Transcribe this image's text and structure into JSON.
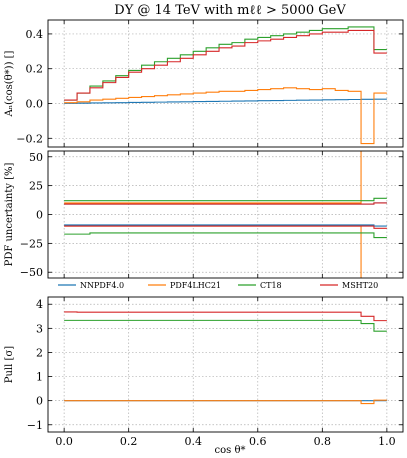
{
  "figure": {
    "title": "DY @ 14 TeV with mℓℓ > 5000 GeV",
    "xlabel": "cos θ*"
  },
  "colors": {
    "NNPDF4.0": "#1f77b4",
    "PDF4LHC21": "#ff7f0e",
    "CT18": "#2ca02c",
    "MSHT20": "#d62728"
  },
  "chart_data": [
    {
      "type": "line",
      "step": true,
      "panel": "asymmetry",
      "ylabel": "Aₙ(cos(θ*)) []",
      "xlim": [
        -0.05,
        1.05
      ],
      "ylim": [
        -0.25,
        0.48
      ],
      "x_ticks": [
        0.0,
        0.2,
        0.4,
        0.6,
        0.8,
        1.0
      ],
      "y_ticks": [
        -0.2,
        0.0,
        0.2,
        0.4
      ],
      "y_tick_labels": [
        "−0.2",
        "0.0",
        "0.2",
        "0.4"
      ],
      "grid": true,
      "bin_edges": [
        0.0,
        0.04,
        0.08,
        0.12,
        0.16,
        0.2,
        0.24,
        0.28,
        0.32,
        0.36,
        0.4,
        0.44,
        0.48,
        0.52,
        0.56,
        0.6,
        0.64,
        0.68,
        0.72,
        0.76,
        0.8,
        0.84,
        0.88,
        0.92,
        0.96,
        1.0
      ],
      "series": [
        {
          "name": "NNPDF4.0",
          "values": [
            0.001,
            0.002,
            0.003,
            0.004,
            0.005,
            0.006,
            0.007,
            0.008,
            0.009,
            0.01,
            0.011,
            0.012,
            0.013,
            0.014,
            0.015,
            0.016,
            0.017,
            0.018,
            0.019,
            0.02,
            0.021,
            0.022,
            0.023,
            0.024,
            0.025
          ]
        },
        {
          "name": "PDF4LHC21",
          "values": [
            0.005,
            0.01,
            0.02,
            0.025,
            0.03,
            0.035,
            0.04,
            0.045,
            0.05,
            0.055,
            0.06,
            0.065,
            0.07,
            0.07,
            0.075,
            0.08,
            0.085,
            0.09,
            0.085,
            0.08,
            0.085,
            0.075,
            0.07,
            -0.23,
            0.06
          ]
        },
        {
          "name": "CT18",
          "values": [
            0.02,
            0.06,
            0.1,
            0.13,
            0.16,
            0.19,
            0.22,
            0.24,
            0.26,
            0.28,
            0.3,
            0.32,
            0.34,
            0.35,
            0.37,
            0.38,
            0.39,
            0.4,
            0.41,
            0.42,
            0.43,
            0.43,
            0.44,
            0.44,
            0.31
          ]
        },
        {
          "name": "MSHT20",
          "values": [
            0.02,
            0.06,
            0.09,
            0.12,
            0.15,
            0.18,
            0.2,
            0.22,
            0.24,
            0.26,
            0.28,
            0.3,
            0.32,
            0.33,
            0.35,
            0.36,
            0.37,
            0.38,
            0.39,
            0.4,
            0.41,
            0.41,
            0.42,
            0.42,
            0.29
          ]
        }
      ]
    },
    {
      "type": "line",
      "step": true,
      "panel": "pdf-uncertainty",
      "ylabel": "PDF uncertainty [%]",
      "xlim": [
        -0.05,
        1.05
      ],
      "ylim": [
        -55,
        55
      ],
      "x_ticks": [
        0.0,
        0.2,
        0.4,
        0.6,
        0.8,
        1.0
      ],
      "y_ticks": [
        -50,
        -25,
        0,
        25,
        50
      ],
      "y_tick_labels": [
        "−50",
        "−25",
        "0",
        "25",
        "50"
      ],
      "grid": true,
      "legend": "bottom, outside, 4 columns",
      "bin_edges": [
        0.0,
        0.04,
        0.08,
        0.12,
        0.16,
        0.2,
        0.24,
        0.28,
        0.32,
        0.36,
        0.4,
        0.44,
        0.48,
        0.52,
        0.56,
        0.6,
        0.64,
        0.68,
        0.72,
        0.76,
        0.8,
        0.84,
        0.88,
        0.92,
        0.96,
        1.0
      ],
      "series": [
        {
          "name": "NNPDF4.0",
          "upper": [
            9,
            9,
            9,
            9,
            9,
            9,
            9,
            9,
            9,
            9,
            9,
            9,
            9,
            9,
            9,
            9,
            9,
            9,
            9,
            9,
            9,
            9,
            9,
            9,
            10
          ],
          "lower": [
            -9,
            -9,
            -9,
            -9,
            -9,
            -9,
            -9,
            -9,
            -9,
            -9,
            -9,
            -9,
            -9,
            -9,
            -9,
            -9,
            -9,
            -9,
            -9,
            -9,
            -9,
            -9,
            -9,
            -9,
            -10
          ]
        },
        {
          "name": "PDF4LHC21",
          "upper": [
            10,
            10,
            10,
            10,
            10,
            10,
            10,
            10,
            10,
            10,
            10,
            10,
            10,
            10,
            10,
            10,
            10,
            10,
            10,
            10,
            10,
            10,
            10,
            60,
            60
          ],
          "lower": [
            -10,
            -10,
            -10,
            -10,
            -10,
            -10,
            -10,
            -10,
            -10,
            -10,
            -10,
            -10,
            -10,
            -10,
            -10,
            -10,
            -10,
            -10,
            -10,
            -10,
            -10,
            -10,
            -10,
            -60,
            -60
          ]
        },
        {
          "name": "CT18",
          "upper": [
            12,
            12,
            12,
            12,
            12,
            12,
            12,
            12,
            12,
            12,
            12,
            12,
            12,
            12,
            12,
            12,
            12,
            12,
            12,
            12,
            12,
            12,
            12,
            12,
            14
          ],
          "lower": [
            -17,
            -17,
            -16,
            -16,
            -16,
            -16,
            -16,
            -16,
            -16,
            -16,
            -16,
            -16,
            -16,
            -16,
            -16,
            -16,
            -16,
            -16,
            -16,
            -16,
            -16,
            -16,
            -16,
            -16,
            -20
          ]
        },
        {
          "name": "MSHT20",
          "upper": [
            9,
            9,
            9,
            9,
            9,
            9,
            9,
            9,
            9,
            9,
            9,
            9,
            9,
            9,
            9,
            9,
            9,
            9,
            9,
            9,
            9,
            9,
            9,
            9,
            10
          ],
          "lower": [
            -10,
            -10,
            -10,
            -10,
            -10,
            -10,
            -10,
            -10,
            -10,
            -10,
            -10,
            -10,
            -10,
            -10,
            -10,
            -10,
            -10,
            -10,
            -10,
            -10,
            -10,
            -10,
            -10,
            -10,
            -12
          ]
        }
      ]
    },
    {
      "type": "line",
      "step": true,
      "panel": "pull",
      "ylabel": "Pull [σ]",
      "xlim": [
        -0.05,
        1.05
      ],
      "ylim": [
        -1.3,
        4.3
      ],
      "x_ticks": [
        0.0,
        0.2,
        0.4,
        0.6,
        0.8,
        1.0
      ],
      "x_tick_labels": [
        "0.0",
        "0.2",
        "0.4",
        "0.6",
        "0.8",
        "1.0"
      ],
      "y_ticks": [
        -1,
        0,
        1,
        2,
        3,
        4
      ],
      "y_tick_labels": [
        "−1",
        "0",
        "1",
        "2",
        "3",
        "4"
      ],
      "grid": true,
      "bin_edges": [
        0.0,
        0.04,
        0.08,
        0.12,
        0.16,
        0.2,
        0.24,
        0.28,
        0.32,
        0.36,
        0.4,
        0.44,
        0.48,
        0.52,
        0.56,
        0.6,
        0.64,
        0.68,
        0.72,
        0.76,
        0.8,
        0.84,
        0.88,
        0.92,
        0.96,
        1.0
      ],
      "series": [
        {
          "name": "NNPDF4.0",
          "values": [
            0,
            0,
            0,
            0,
            0,
            0,
            0,
            0,
            0,
            0,
            0,
            0,
            0,
            0,
            0,
            0,
            0,
            0,
            0,
            0,
            0,
            0,
            0,
            0,
            0
          ]
        },
        {
          "name": "PDF4LHC21",
          "values": [
            0,
            0,
            0,
            0,
            0,
            0,
            0,
            0,
            0,
            0,
            0,
            0,
            0,
            0,
            0,
            0,
            0,
            0,
            0,
            0,
            0,
            0,
            0,
            -0.12,
            0.02
          ]
        },
        {
          "name": "CT18",
          "values": [
            3.33,
            3.33,
            3.33,
            3.33,
            3.33,
            3.33,
            3.33,
            3.33,
            3.33,
            3.33,
            3.33,
            3.33,
            3.33,
            3.33,
            3.33,
            3.33,
            3.33,
            3.33,
            3.33,
            3.33,
            3.33,
            3.33,
            3.33,
            3.2,
            2.88
          ]
        },
        {
          "name": "MSHT20",
          "values": [
            3.68,
            3.67,
            3.67,
            3.67,
            3.67,
            3.67,
            3.67,
            3.67,
            3.67,
            3.67,
            3.67,
            3.67,
            3.67,
            3.67,
            3.67,
            3.67,
            3.67,
            3.67,
            3.67,
            3.67,
            3.67,
            3.67,
            3.67,
            3.5,
            3.32
          ]
        }
      ]
    }
  ]
}
